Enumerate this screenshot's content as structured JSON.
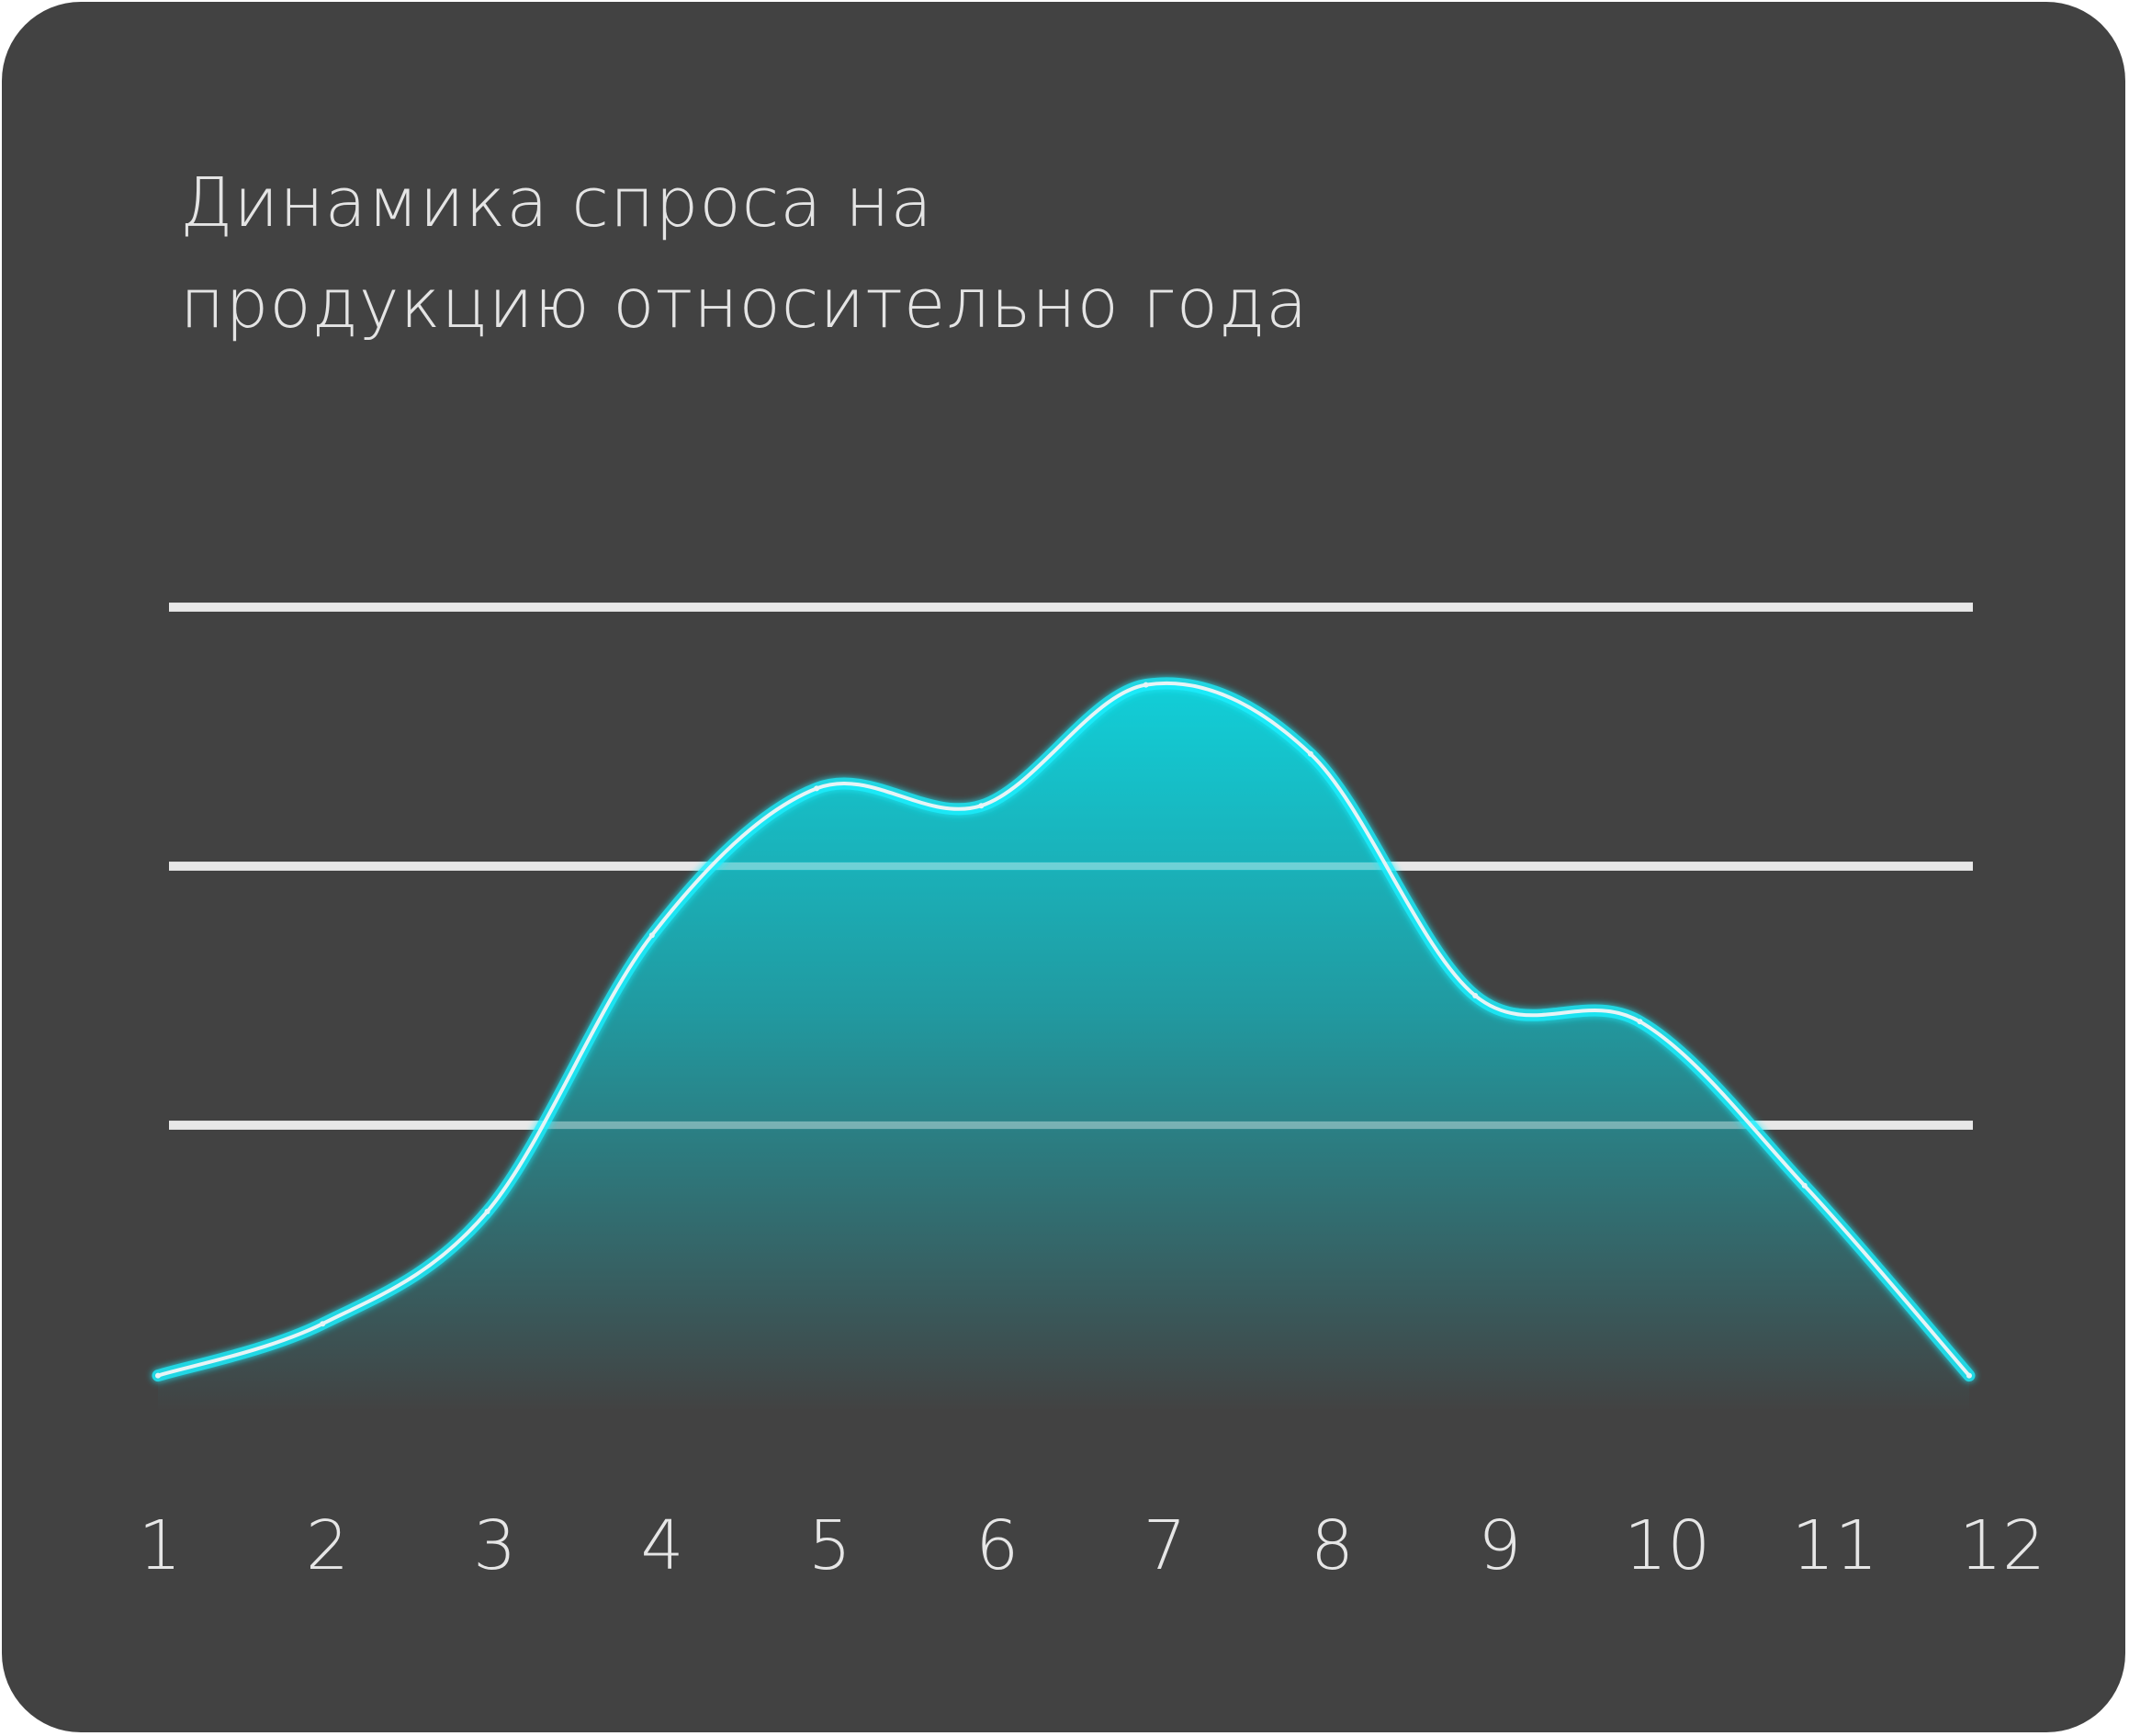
{
  "chart_data": {
    "type": "area",
    "title_lines": [
      "Динамика спроса на",
      "продукцию относительно года"
    ],
    "xlabel": "",
    "ylabel": "",
    "categories": [
      "1",
      "2",
      "3",
      "4",
      "5",
      "6",
      "7",
      "8",
      "9",
      "10",
      "11",
      "12"
    ],
    "x": [
      1,
      2,
      3,
      4,
      5,
      6,
      7,
      8,
      9,
      10,
      11,
      12
    ],
    "values": [
      0.1,
      0.7,
      2.0,
      5.2,
      6.9,
      6.7,
      8.1,
      7.3,
      4.5,
      4.2,
      2.3,
      0.1
    ],
    "ylim": [
      0,
      9
    ],
    "gridlines": [
      3,
      6,
      9
    ],
    "grid": true,
    "legend": "none",
    "colors": {
      "background": "#424242",
      "line": "#1ef0ff",
      "fill_top": "#0fd6e0",
      "fill_bottom": "#424242",
      "grid": "#dcdcdc",
      "text": "#e4e4e4"
    }
  }
}
